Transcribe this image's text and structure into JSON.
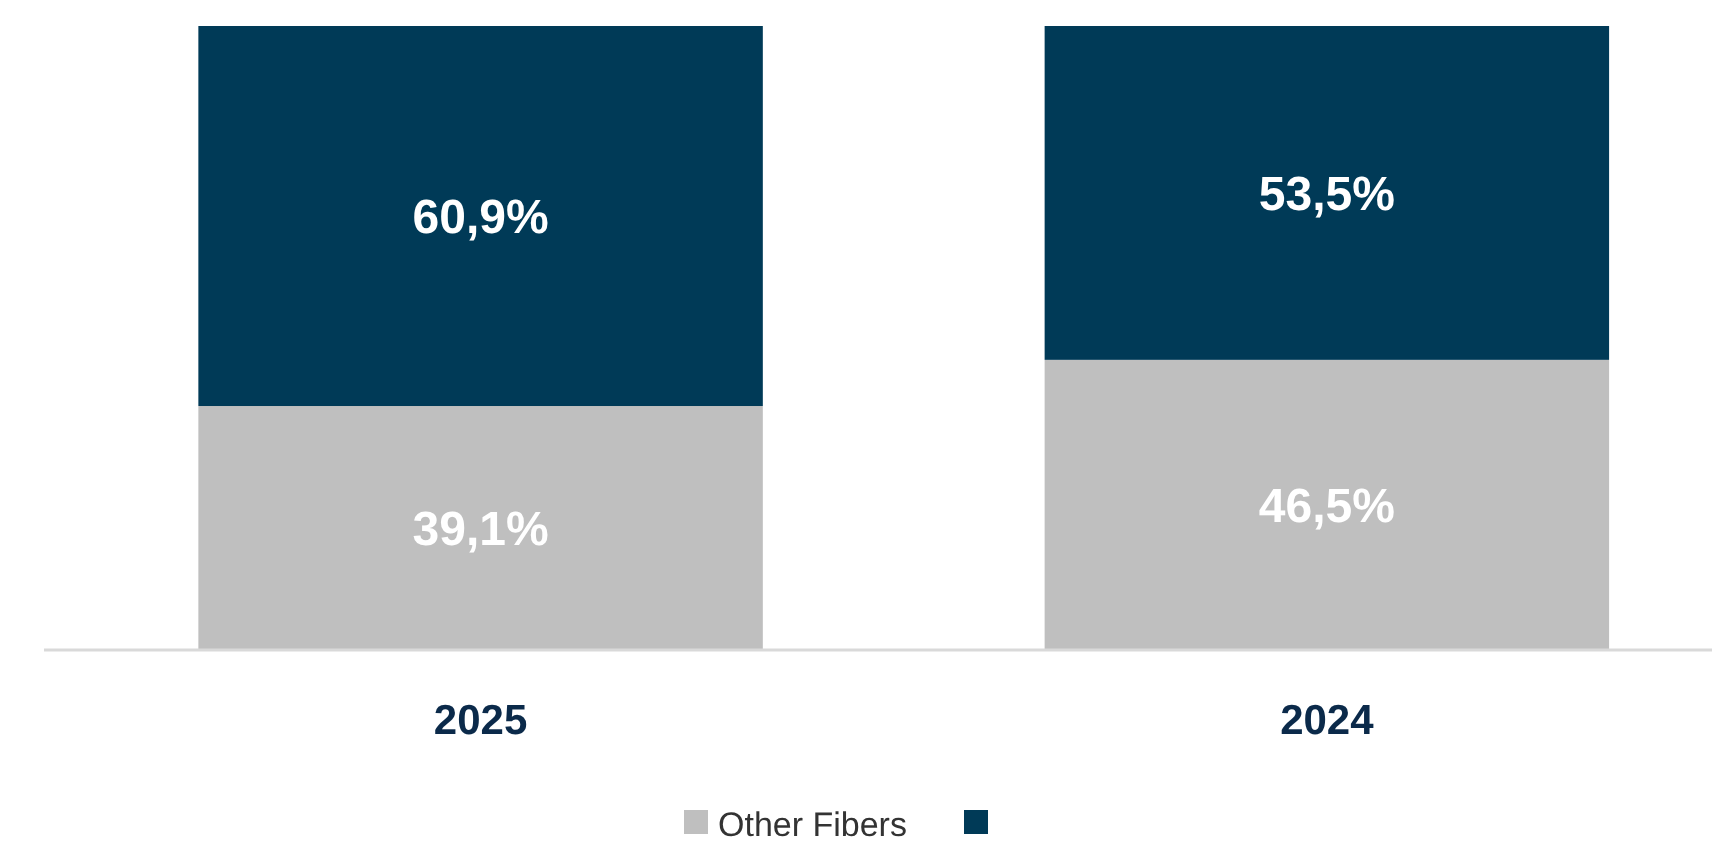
{
  "chart_data": {
    "type": "bar",
    "stacked": true,
    "categories": [
      "2025",
      "2024"
    ],
    "series": [
      {
        "name": "Other Fibers",
        "color": "#bfbfbf",
        "values": [
          39.1,
          46.5
        ],
        "value_labels": [
          "39,1%",
          "46,5%"
        ]
      },
      {
        "color": "#003a57",
        "values": [
          60.9,
          53.5
        ],
        "value_labels": [
          "60,9%",
          "53,5%"
        ]
      }
    ],
    "legend": "bottom",
    "tick_labels": "x"
  }
}
